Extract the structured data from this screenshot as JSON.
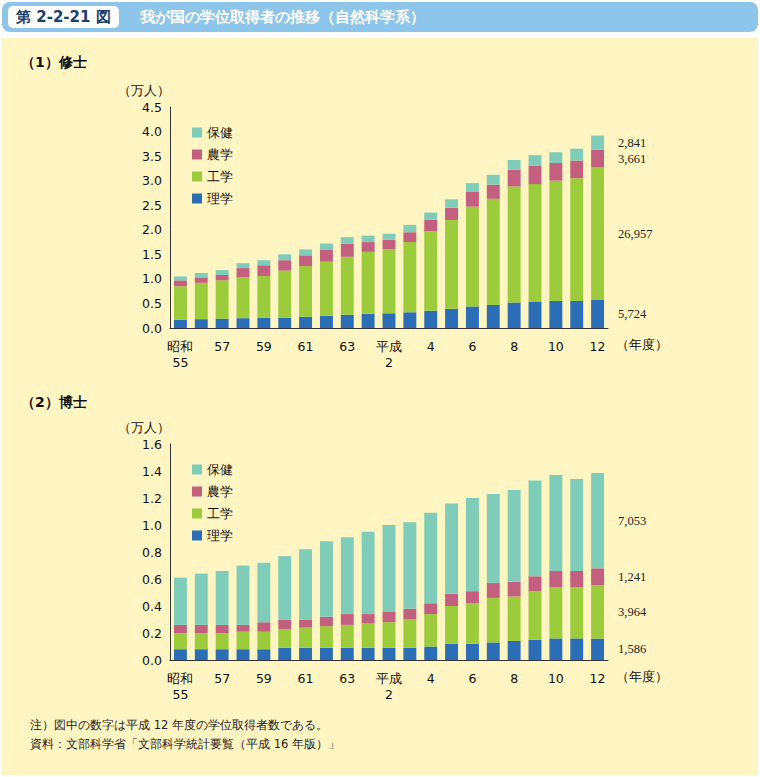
{
  "header": {
    "figure_number": "第 2-2-21 図",
    "title": "我が国の学位取得者の推移（自然科学系）"
  },
  "chart_data": [
    {
      "type": "bar",
      "title": "（1）修士",
      "y_label": "（万人）",
      "x_label": "（年度）",
      "stacked": true,
      "grid": false,
      "legend": "upper left",
      "categories": [
        "昭和\n55",
        null,
        "57",
        null,
        "59",
        null,
        "61",
        null,
        "63",
        null,
        "平成\n2",
        null,
        "4",
        null,
        "6",
        null,
        "8",
        null,
        "10",
        null,
        "12"
      ],
      "ylim": [
        0,
        4.5
      ],
      "yticks": [
        {
          "value": 0,
          "label": "0.0"
        },
        0.5,
        {
          "value": 1,
          "label": "1.0"
        },
        1.5,
        {
          "value": 2,
          "label": "2.0"
        },
        2.5,
        {
          "value": 3,
          "label": "3.0"
        },
        3.5,
        {
          "value": 4,
          "label": "4.0"
        },
        4.5
      ],
      "series": [
        {
          "name": "理学",
          "color": "#2b6eb6",
          "values": [
            0.17,
            0.18,
            0.19,
            0.2,
            0.21,
            0.21,
            0.23,
            0.25,
            0.27,
            0.29,
            0.3,
            0.32,
            0.35,
            0.39,
            0.44,
            0.47,
            0.52,
            0.53,
            0.55,
            0.55,
            0.5724
          ]
        },
        {
          "name": "工学",
          "color": "#9ccb3c",
          "values": [
            0.68,
            0.74,
            0.78,
            0.83,
            0.85,
            0.96,
            1.03,
            1.1,
            1.18,
            1.26,
            1.3,
            1.43,
            1.62,
            1.81,
            2.03,
            2.16,
            2.36,
            2.4,
            2.45,
            2.5,
            2.6957
          ]
        },
        {
          "name": "農学",
          "color": "#c4607f",
          "values": [
            0.12,
            0.11,
            0.11,
            0.19,
            0.22,
            0.21,
            0.22,
            0.25,
            0.27,
            0.2,
            0.2,
            0.2,
            0.23,
            0.25,
            0.31,
            0.29,
            0.34,
            0.37,
            0.36,
            0.36,
            0.3661
          ]
        },
        {
          "name": "保健",
          "color": "#7fcdb8",
          "values": [
            0.08,
            0.09,
            0.1,
            0.1,
            0.1,
            0.12,
            0.12,
            0.12,
            0.13,
            0.13,
            0.12,
            0.15,
            0.15,
            0.17,
            0.17,
            0.2,
            0.2,
            0.22,
            0.22,
            0.24,
            0.2841
          ]
        }
      ],
      "annotations": [
        {
          "text": "2,841",
          "series": "保健",
          "category": "12"
        },
        {
          "text": "3,661",
          "series": "農学",
          "category": "12"
        },
        {
          "text": "26,957",
          "series": "工学",
          "category": "12"
        },
        {
          "text": "5,724",
          "series": "理学",
          "category": "12"
        }
      ]
    },
    {
      "type": "bar",
      "title": "（2）博士",
      "y_label": "（万人）",
      "x_label": "（年度）",
      "stacked": true,
      "grid": false,
      "legend": "upper left",
      "categories": [
        "昭和\n55",
        null,
        "57",
        null,
        "59",
        null,
        "61",
        null,
        "63",
        null,
        "平成\n2",
        null,
        "4",
        null,
        "6",
        null,
        "8",
        null,
        "10",
        null,
        "12"
      ],
      "ylim": [
        0,
        1.6
      ],
      "yticks": [
        {
          "value": 0,
          "label": "0.0"
        },
        0.2,
        0.4,
        0.6,
        0.8,
        {
          "value": 1,
          "label": "1.0"
        },
        1.2,
        1.4,
        1.6
      ],
      "series": [
        {
          "name": "理学",
          "color": "#2b6eb6",
          "values": [
            0.08,
            0.08,
            0.08,
            0.08,
            0.08,
            0.09,
            0.09,
            0.09,
            0.09,
            0.09,
            0.09,
            0.09,
            0.1,
            0.12,
            0.12,
            0.13,
            0.14,
            0.15,
            0.16,
            0.16,
            0.1586
          ]
        },
        {
          "name": "工学",
          "color": "#9ccb3c",
          "values": [
            0.12,
            0.12,
            0.12,
            0.13,
            0.13,
            0.14,
            0.15,
            0.16,
            0.17,
            0.18,
            0.19,
            0.21,
            0.24,
            0.28,
            0.3,
            0.33,
            0.33,
            0.36,
            0.38,
            0.38,
            0.3964
          ]
        },
        {
          "name": "農学",
          "color": "#c4607f",
          "values": [
            0.06,
            0.06,
            0.06,
            0.05,
            0.07,
            0.07,
            0.06,
            0.07,
            0.08,
            0.07,
            0.08,
            0.08,
            0.08,
            0.09,
            0.09,
            0.11,
            0.11,
            0.11,
            0.12,
            0.12,
            0.1241
          ]
        },
        {
          "name": "保健",
          "color": "#7fcdb8",
          "values": [
            0.35,
            0.38,
            0.4,
            0.44,
            0.44,
            0.47,
            0.52,
            0.56,
            0.57,
            0.61,
            0.64,
            0.64,
            0.67,
            0.67,
            0.69,
            0.66,
            0.68,
            0.71,
            0.71,
            0.68,
            0.7053
          ]
        }
      ],
      "annotations": [
        {
          "text": "7,053",
          "series": "保健",
          "category": "12"
        },
        {
          "text": "1,241",
          "series": "農学",
          "category": "12"
        },
        {
          "text": "3,964",
          "series": "工学",
          "category": "12"
        },
        {
          "text": "1,586",
          "series": "理学",
          "category": "12"
        }
      ]
    }
  ],
  "notes": [
    "注）図中の数字は平成 12 年度の学位取得者数である。",
    "資料：文部科学省「文部科学統計要覧（平成 16 年版）」"
  ]
}
